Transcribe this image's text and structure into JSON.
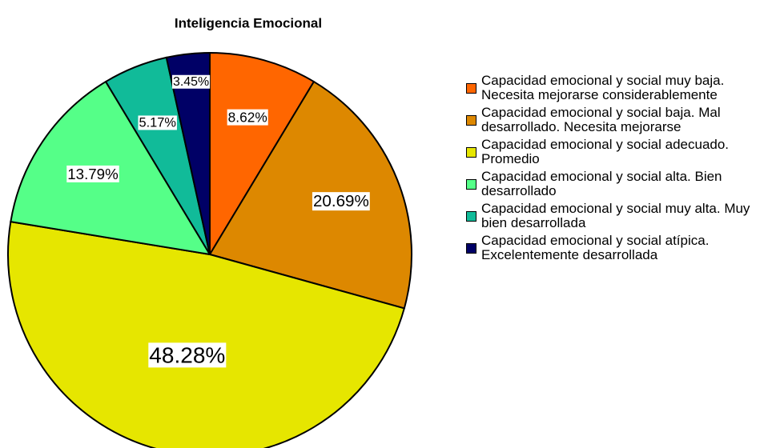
{
  "chart_data": {
    "type": "pie",
    "title": "Inteligencia Emocional",
    "categories": [
      "Capacidad emocional y social muy baja. Necesita mejorarse considerablemente",
      "Capacidad emocional y social baja. Mal desarrollado. Necesita mejorarse",
      "Capacidad emocional y social adecuado. Promedio",
      "Capacidad emocional y social alta. Bien desarrollado",
      "Capacidad emocional y social muy alta. Muy bien desarrollada",
      "Capacidad emocional y social atípica. Excelentemente desarrollada"
    ],
    "values": [
      8.62,
      20.69,
      48.28,
      13.79,
      5.17,
      3.45
    ],
    "value_labels": [
      "8.62%",
      "20.69%",
      "48.28%",
      "13.79%",
      "5.17%",
      "3.45%"
    ],
    "colors": [
      "#ff6600",
      "#dd8800",
      "#e6e600",
      "#55ff88",
      "#11bb99",
      "#000066"
    ],
    "legend": "right"
  }
}
